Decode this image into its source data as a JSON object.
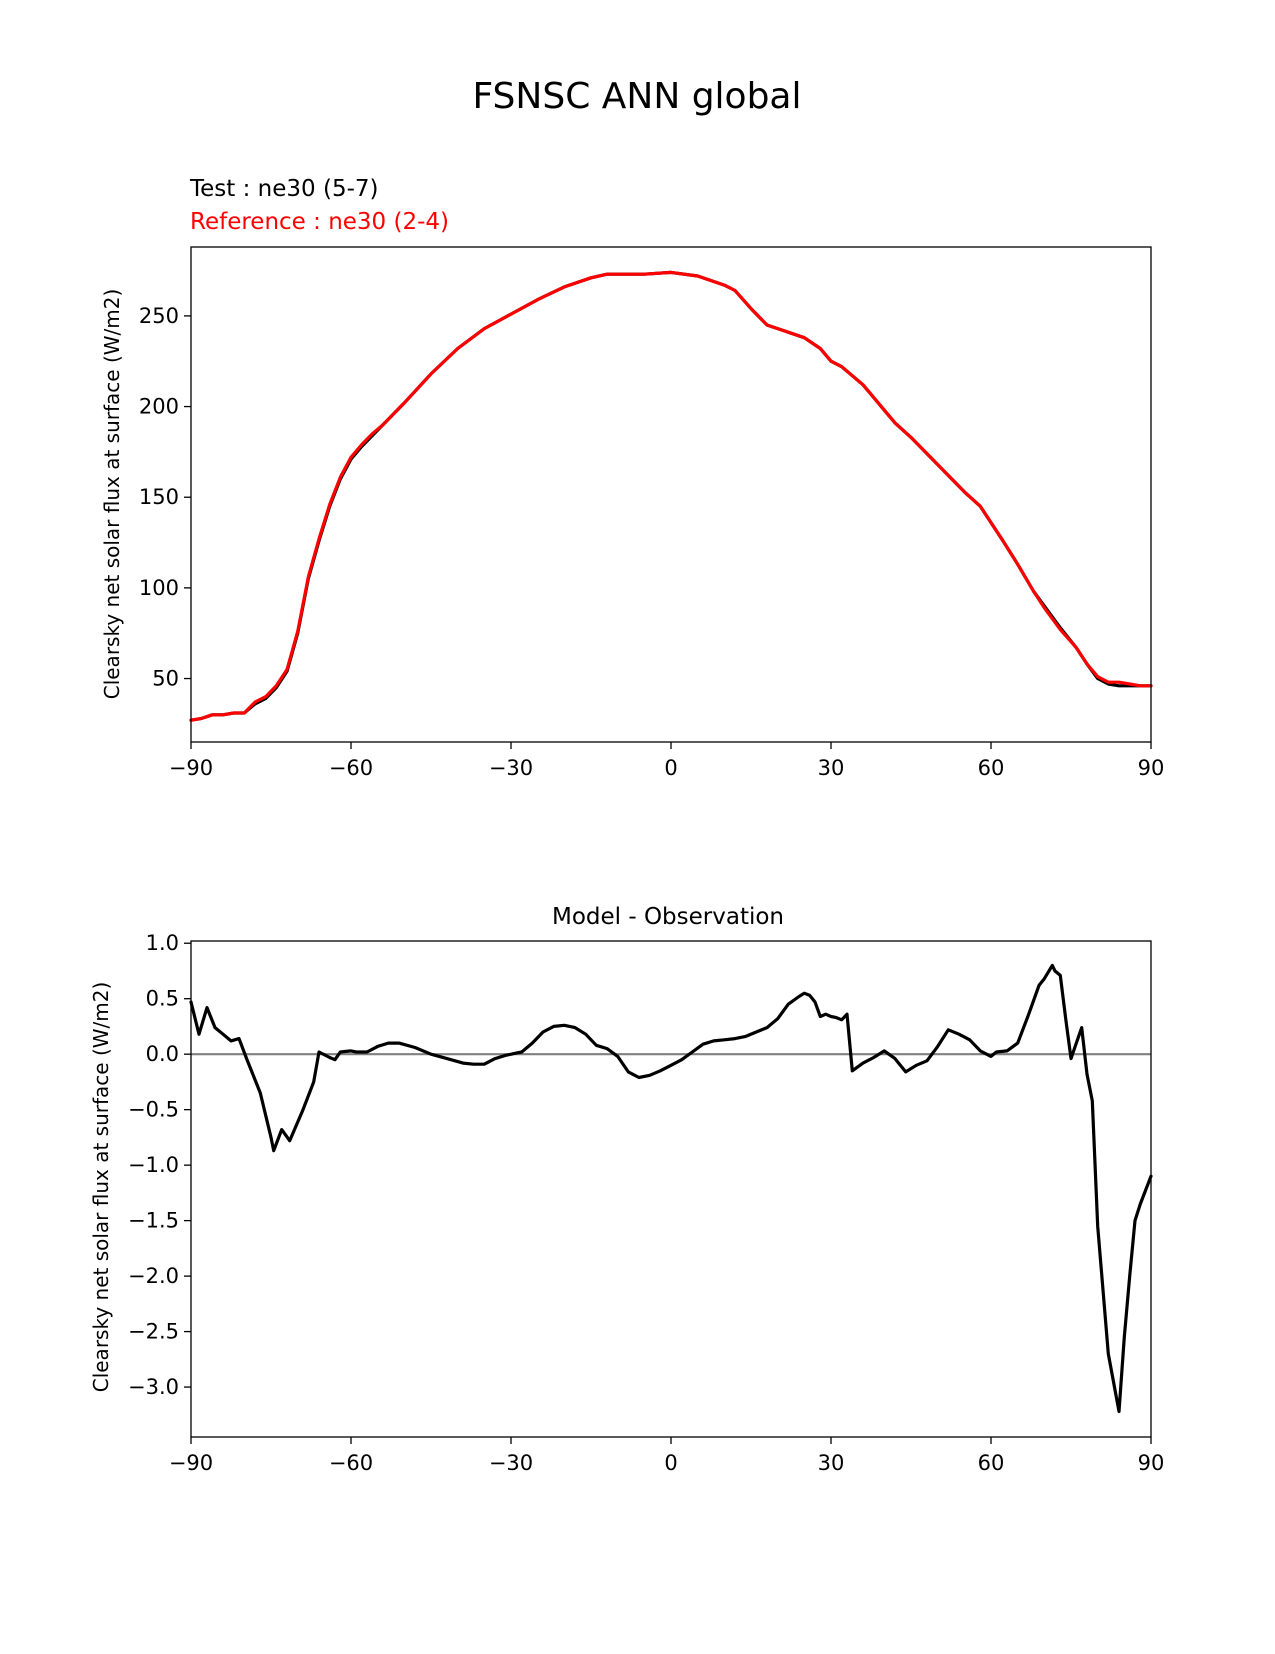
{
  "figure": {
    "title": "FSNSC ANN global",
    "colors": {
      "test": "#000000",
      "reference": "#ff0000",
      "zero_line": "#808080",
      "axes": "#000000"
    }
  },
  "chart_data": [
    {
      "type": "line",
      "title_lines": [
        "Test : ne30 (5-7)",
        "Reference : ne30 (2-4)"
      ],
      "xlabel": "",
      "ylabel": "Clearsky net solar flux at surface (W/m2)",
      "xlim": [
        -90,
        90
      ],
      "ylim": [
        15,
        288
      ],
      "xticks": [
        -90,
        -60,
        -30,
        0,
        30,
        60,
        90
      ],
      "xtick_labels": [
        "−90",
        "−60",
        "−30",
        "0",
        "30",
        "60",
        "90"
      ],
      "yticks": [
        50,
        100,
        150,
        200,
        250
      ],
      "ytick_labels": [
        "50",
        "100",
        "150",
        "200",
        "250"
      ],
      "grid": false,
      "series": [
        {
          "name": "Test : ne30 (5-7)",
          "color": "#000000",
          "x": [
            -90,
            -88,
            -86,
            -84,
            -82,
            -80,
            -78,
            -76,
            -74,
            -72,
            -70,
            -68,
            -66,
            -64,
            -62,
            -60,
            -58,
            -56,
            -54,
            -52,
            -50,
            -45,
            -40,
            -35,
            -30,
            -25,
            -20,
            -15,
            -12,
            -10,
            -5,
            0,
            5,
            10,
            12,
            15,
            18,
            20,
            25,
            28,
            30,
            32,
            34,
            36,
            38,
            40,
            42,
            45,
            50,
            55,
            58,
            60,
            62,
            65,
            68,
            70,
            73,
            76,
            78,
            80,
            82,
            84,
            86,
            88,
            90
          ],
          "y": [
            27,
            28,
            30,
            30,
            31,
            31,
            36,
            39,
            45,
            54,
            75,
            105,
            126,
            145,
            160,
            171,
            178,
            184,
            190,
            196,
            202,
            218,
            232,
            243,
            251,
            259,
            266,
            271,
            273,
            273,
            273,
            274,
            272,
            267,
            264,
            254,
            245,
            243,
            238,
            232,
            225,
            222,
            217,
            212,
            205,
            198,
            191,
            183,
            168,
            153,
            145,
            136,
            127,
            113,
            98,
            90,
            78,
            67,
            58,
            50,
            47,
            46,
            46,
            46,
            46
          ]
        },
        {
          "name": "Reference : ne30 (2-4)",
          "color": "#ff0000",
          "x": [
            -90,
            -88,
            -86,
            -84,
            -82,
            -80,
            -78,
            -76,
            -74,
            -72,
            -70,
            -68,
            -66,
            -64,
            -62,
            -60,
            -58,
            -56,
            -54,
            -52,
            -50,
            -45,
            -40,
            -35,
            -30,
            -25,
            -20,
            -15,
            -12,
            -10,
            -5,
            0,
            5,
            10,
            12,
            15,
            18,
            20,
            25,
            28,
            30,
            32,
            34,
            36,
            38,
            40,
            42,
            45,
            50,
            55,
            58,
            60,
            62,
            65,
            68,
            70,
            73,
            76,
            78,
            80,
            82,
            84,
            86,
            88,
            90
          ],
          "y": [
            27,
            28,
            30,
            30,
            31,
            31,
            37,
            40,
            46,
            55,
            76,
            106,
            127,
            146,
            161,
            172,
            179,
            185,
            190,
            196,
            202,
            218,
            232,
            243,
            251,
            259,
            266,
            271,
            273,
            273,
            273,
            274,
            272,
            267,
            264,
            254,
            245,
            243,
            238,
            232,
            225,
            222,
            217,
            212,
            205,
            198,
            191,
            183,
            168,
            153,
            145,
            136,
            127,
            113,
            98,
            89,
            77,
            67,
            58,
            51,
            48,
            48,
            47,
            46,
            46
          ]
        }
      ]
    },
    {
      "type": "line",
      "title": "Model - Observation",
      "xlabel": "",
      "ylabel": "Clearsky net solar flux at surface (W/m2)",
      "xlim": [
        -90,
        90
      ],
      "ylim": [
        -3.45,
        1.02
      ],
      "xticks": [
        -90,
        -60,
        -30,
        0,
        30,
        60,
        90
      ],
      "xtick_labels": [
        "−90",
        "−60",
        "−30",
        "0",
        "30",
        "60",
        "90"
      ],
      "yticks": [
        1.0,
        0.5,
        0.0,
        -0.5,
        -1.0,
        -1.5,
        -2.0,
        -2.5,
        -3.0
      ],
      "ytick_labels": [
        "1.0",
        "0.5",
        "0.0",
        "−0.5",
        "−1.0",
        "−1.5",
        "−2.0",
        "−2.5",
        "−3.0"
      ],
      "grid": false,
      "reference_line": {
        "y": 0,
        "color": "#808080"
      },
      "series": [
        {
          "color": "#000000",
          "x": [
            -90,
            -88.5,
            -87,
            -85.5,
            -84,
            -82.5,
            -81,
            -79.5,
            -77,
            -75,
            -74.5,
            -73,
            -71.5,
            -69,
            -67,
            -66,
            -64,
            -63,
            -62,
            -60,
            -59,
            -57,
            -55,
            -53,
            -51,
            -48,
            -45,
            -42,
            -39,
            -37,
            -35,
            -33,
            -31,
            -29,
            -28,
            -26,
            -24,
            -22,
            -20,
            -18,
            -16,
            -14,
            -12,
            -10,
            -8,
            -6,
            -4,
            -2,
            0,
            2,
            4,
            6,
            8,
            10,
            12,
            14,
            16,
            18,
            20,
            22,
            24,
            25,
            26,
            27,
            28,
            29,
            30,
            31,
            32,
            33,
            34,
            36,
            38,
            40,
            42,
            44,
            46,
            48,
            50,
            52,
            54,
            56,
            58,
            60,
            61,
            63,
            65,
            67,
            69,
            70,
            71.5,
            72,
            73,
            74,
            75,
            76,
            77,
            78,
            79,
            80,
            82,
            84,
            85,
            86,
            87,
            88,
            90
          ],
          "y": [
            0.47,
            0.18,
            0.42,
            0.24,
            0.18,
            0.12,
            0.14,
            -0.05,
            -0.35,
            -0.75,
            -0.87,
            -0.68,
            -0.78,
            -0.5,
            -0.25,
            0.02,
            -0.03,
            -0.05,
            0.02,
            0.03,
            0.02,
            0.02,
            0.07,
            0.1,
            0.1,
            0.06,
            0.0,
            -0.04,
            -0.08,
            -0.09,
            -0.09,
            -0.04,
            -0.01,
            0.01,
            0.02,
            0.1,
            0.2,
            0.25,
            0.26,
            0.24,
            0.18,
            0.08,
            0.05,
            -0.02,
            -0.16,
            -0.21,
            -0.19,
            -0.15,
            -0.1,
            -0.05,
            0.02,
            0.09,
            0.12,
            0.13,
            0.14,
            0.16,
            0.2,
            0.24,
            0.32,
            0.45,
            0.52,
            0.55,
            0.53,
            0.47,
            0.34,
            0.36,
            0.34,
            0.33,
            0.31,
            0.36,
            -0.15,
            -0.08,
            -0.03,
            0.03,
            -0.04,
            -0.16,
            -0.1,
            -0.06,
            0.07,
            0.22,
            0.18,
            0.13,
            0.03,
            -0.02,
            0.02,
            0.03,
            0.1,
            0.35,
            0.62,
            0.68,
            0.8,
            0.75,
            0.71,
            0.32,
            -0.04,
            0.1,
            0.24,
            -0.18,
            -0.42,
            -1.55,
            -2.7,
            -3.22,
            -2.55,
            -2.0,
            -1.5,
            -1.35,
            -1.1
          ]
        }
      ]
    }
  ]
}
